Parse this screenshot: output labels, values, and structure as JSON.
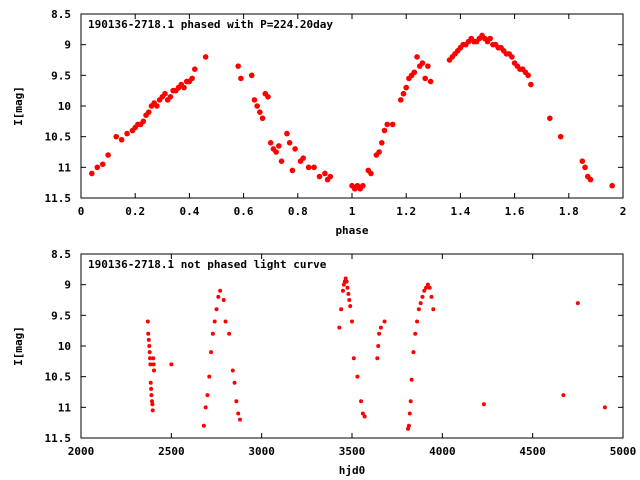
{
  "chart_data": [
    {
      "type": "scatter",
      "title": "190136-2718.1 phased with P=224.20day",
      "xlabel": "phase",
      "ylabel": "I[mag]",
      "xlim": [
        0,
        2
      ],
      "ylim": [
        11.5,
        8.5
      ],
      "y_inverted": true,
      "grid": false,
      "marker_color": "#ff0000",
      "xticks": [
        "0",
        "0.2",
        "0.4",
        "0.6",
        "0.8",
        "1",
        "1.2",
        "1.4",
        "1.6",
        "1.8",
        "2"
      ],
      "yticks": [
        "8.5",
        "9",
        "9.5",
        "10",
        "10.5",
        "11",
        "11.5"
      ],
      "series": [
        {
          "x": [
            0.04,
            0.06,
            0.08,
            0.1,
            0.13,
            0.15,
            0.17,
            0.19,
            0.2,
            0.21,
            0.22,
            0.23,
            0.24,
            0.25,
            0.26,
            0.27,
            0.28,
            0.29,
            0.3,
            0.31,
            0.32,
            0.33,
            0.34,
            0.35,
            0.36,
            0.37,
            0.38,
            0.39,
            0.4,
            0.41,
            0.42,
            0.46,
            0.58,
            0.59,
            0.63,
            0.64,
            0.65,
            0.66,
            0.67,
            0.68,
            0.69,
            0.7,
            0.71,
            0.72,
            0.73,
            0.74,
            0.76,
            0.77,
            0.78,
            0.79,
            0.81,
            0.82,
            0.84,
            0.86,
            0.88,
            0.9,
            0.91,
            0.92,
            1.0,
            1.01,
            1.02,
            1.03,
            1.04,
            1.06,
            1.07,
            1.09,
            1.1,
            1.11,
            1.12,
            1.13,
            1.15,
            1.18,
            1.19,
            1.2,
            1.21,
            1.22,
            1.23,
            1.24,
            1.25,
            1.26,
            1.27,
            1.28,
            1.29,
            1.36,
            1.37,
            1.38,
            1.39,
            1.4,
            1.41,
            1.42,
            1.43,
            1.44,
            1.45,
            1.46,
            1.47,
            1.48,
            1.49,
            1.5,
            1.51,
            1.52,
            1.53,
            1.54,
            1.55,
            1.56,
            1.57,
            1.58,
            1.59,
            1.6,
            1.61,
            1.62,
            1.63,
            1.64,
            1.65,
            1.66,
            1.73,
            1.77,
            1.85,
            1.86,
            1.87,
            1.88,
            1.96
          ],
          "y": [
            11.1,
            11.0,
            10.95,
            10.8,
            10.5,
            10.55,
            10.45,
            10.4,
            10.35,
            10.3,
            10.3,
            10.25,
            10.15,
            10.1,
            10.0,
            9.95,
            10.0,
            9.9,
            9.85,
            9.8,
            9.9,
            9.85,
            9.75,
            9.75,
            9.7,
            9.65,
            9.7,
            9.6,
            9.6,
            9.55,
            9.4,
            9.2,
            9.35,
            9.55,
            9.5,
            9.9,
            10.0,
            10.1,
            10.2,
            9.8,
            9.85,
            10.6,
            10.7,
            10.75,
            10.65,
            10.9,
            10.45,
            10.6,
            11.05,
            10.7,
            10.9,
            10.85,
            11.0,
            11.0,
            11.15,
            11.1,
            11.2,
            11.15,
            11.3,
            11.35,
            11.3,
            11.35,
            11.3,
            11.05,
            11.1,
            10.8,
            10.75,
            10.6,
            10.4,
            10.3,
            10.3,
            9.9,
            9.8,
            9.7,
            9.55,
            9.5,
            9.45,
            9.2,
            9.35,
            9.3,
            9.55,
            9.35,
            9.6,
            9.25,
            9.2,
            9.15,
            9.1,
            9.05,
            9.0,
            9.0,
            8.95,
            8.9,
            8.95,
            8.95,
            8.9,
            8.85,
            8.9,
            8.95,
            8.9,
            9.0,
            9.0,
            9.05,
            9.05,
            9.1,
            9.15,
            9.15,
            9.2,
            9.3,
            9.35,
            9.4,
            9.4,
            9.45,
            9.5,
            9.65,
            10.2,
            10.5,
            10.9,
            11.0,
            11.15,
            11.2,
            11.3
          ]
        }
      ]
    },
    {
      "type": "scatter",
      "title": "190136-2718.1 not phased light curve",
      "xlabel": "hjd0",
      "ylabel": "I[mag]",
      "xlim": [
        2000,
        5000
      ],
      "ylim": [
        11.5,
        8.5
      ],
      "y_inverted": true,
      "grid": false,
      "marker_color": "#ff0000",
      "xticks": [
        "2000",
        "2500",
        "3000",
        "3500",
        "4000",
        "4500",
        "5000"
      ],
      "yticks": [
        "8.5",
        "9",
        "9.5",
        "10",
        "10.5",
        "11",
        "11.5"
      ],
      "series": [
        {
          "x": [
            2370,
            2372,
            2375,
            2378,
            2380,
            2382,
            2384,
            2386,
            2388,
            2390,
            2393,
            2395,
            2397,
            2400,
            2402,
            2404,
            2500,
            2680,
            2690,
            2700,
            2710,
            2720,
            2730,
            2740,
            2750,
            2760,
            2770,
            2790,
            2800,
            2820,
            2840,
            2850,
            2860,
            2870,
            2880,
            3430,
            3440,
            3450,
            3455,
            3460,
            3465,
            3470,
            3475,
            3480,
            3485,
            3490,
            3500,
            3510,
            3530,
            3550,
            3560,
            3570,
            3640,
            3645,
            3650,
            3660,
            3680,
            3810,
            3815,
            3820,
            3825,
            3830,
            3840,
            3850,
            3860,
            3870,
            3880,
            3890,
            3900,
            3910,
            3920,
            3930,
            3940,
            3950,
            4230,
            4670,
            4750,
            4900
          ],
          "y": [
            9.6,
            9.8,
            9.9,
            10.0,
            10.1,
            10.2,
            10.3,
            10.6,
            10.7,
            10.8,
            10.9,
            10.95,
            11.05,
            10.2,
            10.3,
            10.4,
            10.3,
            11.3,
            11.0,
            10.8,
            10.5,
            10.1,
            9.8,
            9.6,
            9.4,
            9.2,
            9.1,
            9.25,
            9.6,
            9.8,
            10.4,
            10.6,
            10.9,
            11.1,
            11.2,
            9.7,
            9.4,
            9.1,
            9.0,
            8.95,
            8.9,
            8.95,
            9.05,
            9.15,
            9.25,
            9.35,
            9.6,
            10.2,
            10.5,
            10.9,
            11.1,
            11.15,
            10.2,
            10.0,
            9.8,
            9.7,
            9.6,
            11.35,
            11.3,
            11.1,
            10.9,
            10.55,
            10.1,
            9.8,
            9.6,
            9.4,
            9.3,
            9.2,
            9.1,
            9.05,
            9.0,
            9.05,
            9.2,
            9.4,
            10.95,
            10.8,
            9.3,
            11.0
          ]
        }
      ]
    }
  ]
}
